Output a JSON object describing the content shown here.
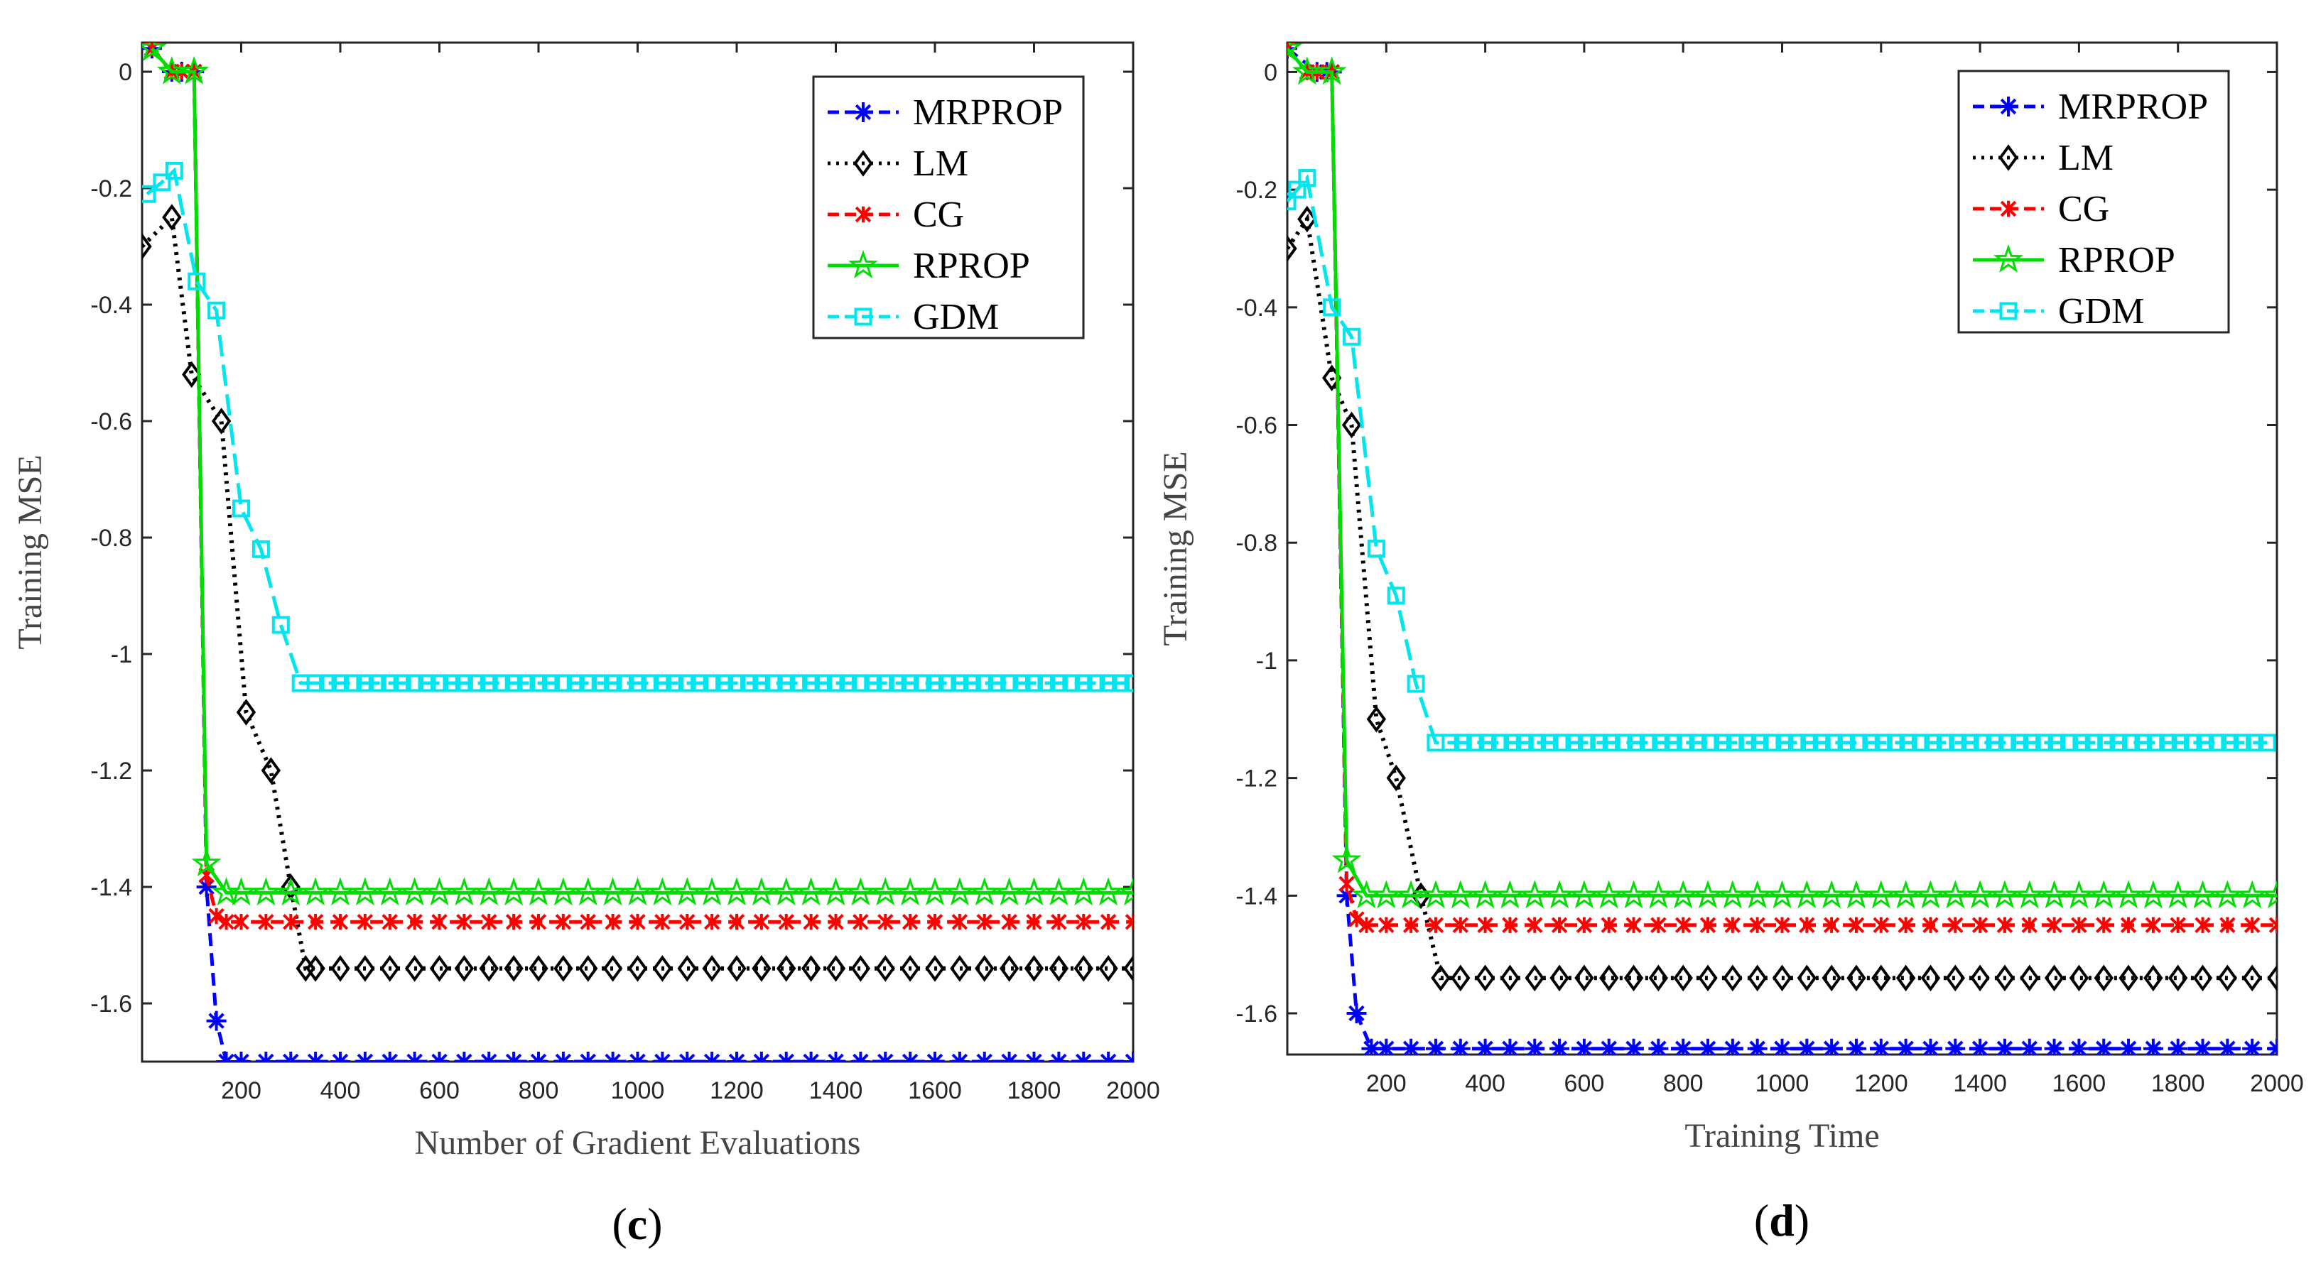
{
  "chart_data": [
    {
      "type": "line",
      "caption_open": "(",
      "caption_letter": "c",
      "caption_close": ")",
      "xlabel": "Number of Gradient Evaluations",
      "ylabel": "Training MSE",
      "xlim": [
        0,
        2000
      ],
      "ylim": [
        -1.7,
        0.05
      ],
      "xticks": [
        200,
        400,
        600,
        800,
        1000,
        1200,
        1400,
        1600,
        1800,
        2000
      ],
      "yticks": [
        0,
        -0.2,
        -0.4,
        -0.6,
        -0.8,
        -1,
        -1.2,
        -1.4,
        -1.6
      ],
      "ytick_labels": [
        "0",
        "-0.2",
        "-0.4",
        "-0.6",
        "-0.8",
        "-1",
        "-1.2",
        "-1.4",
        "-1.6"
      ],
      "legend_position": "top-right",
      "series": [
        {
          "name": "MRPROP",
          "color": "#0000ff",
          "dash": "18,10",
          "marker": "star",
          "points": [
            [
              20,
              0.04
            ],
            [
              60,
              0.0
            ],
            [
              80,
              0.0
            ],
            [
              105,
              0.0
            ],
            [
              130,
              -1.4
            ],
            [
              150,
              -1.63
            ],
            [
              170,
              -1.7
            ]
          ],
          "tail": {
            "start": 200,
            "end": 2000,
            "step": 50,
            "value": -1.7
          }
        },
        {
          "name": "LM",
          "color": "#000000",
          "dash": "4,8",
          "marker": "diamond",
          "points": [
            [
              0,
              -0.3
            ],
            [
              60,
              -0.25
            ],
            [
              100,
              -0.52
            ],
            [
              160,
              -0.6
            ],
            [
              210,
              -1.1
            ],
            [
              260,
              -1.2
            ],
            [
              300,
              -1.4
            ],
            [
              330,
              -1.54
            ]
          ],
          "tail": {
            "start": 350,
            "end": 2000,
            "step": 50,
            "value": -1.54
          }
        },
        {
          "name": "CG",
          "color": "#ff0000",
          "dash": "18,10",
          "marker": "cross",
          "points": [
            [
              20,
              0.04
            ],
            [
              60,
              0.0
            ],
            [
              80,
              0.0
            ],
            [
              105,
              0.0
            ],
            [
              130,
              -1.38
            ],
            [
              150,
              -1.45
            ],
            [
              170,
              -1.46
            ]
          ],
          "tail": {
            "start": 200,
            "end": 2000,
            "step": 50,
            "value": -1.46
          }
        },
        {
          "name": "RPROP",
          "color": "#00dd00",
          "dash": "none",
          "marker": "pentagram",
          "points": [
            [
              20,
              0.04
            ],
            [
              60,
              0.0
            ],
            [
              105,
              0.0
            ],
            [
              130,
              -1.36
            ],
            [
              170,
              -1.41
            ]
          ],
          "tail": {
            "start": 200,
            "end": 2000,
            "step": 50,
            "value": -1.41
          }
        },
        {
          "name": "GDM",
          "color": "#00e5ee",
          "dash": "30,12",
          "marker": "square",
          "points": [
            [
              10,
              -0.21
            ],
            [
              40,
              -0.19
            ],
            [
              65,
              -0.17
            ],
            [
              110,
              -0.36
            ],
            [
              150,
              -0.41
            ],
            [
              200,
              -0.75
            ],
            [
              240,
              -0.82
            ],
            [
              280,
              -0.95
            ],
            [
              320,
              -1.05
            ]
          ],
          "tail": {
            "start": 350,
            "end": 2000,
            "step": 25,
            "value": -1.05
          }
        }
      ]
    },
    {
      "type": "line",
      "caption_open": "(",
      "caption_letter": "d",
      "caption_close": ")",
      "xlabel": "Training Time",
      "ylabel": "Training MSE",
      "xlim": [
        0,
        2000
      ],
      "ylim": [
        -1.67,
        0.05
      ],
      "xticks": [
        200,
        400,
        600,
        800,
        1000,
        1200,
        1400,
        1600,
        1800,
        2000
      ],
      "yticks": [
        0,
        -0.2,
        -0.4,
        -0.6,
        -0.8,
        -1,
        -1.2,
        -1.4,
        -1.6
      ],
      "ytick_labels": [
        "0",
        "-0.2",
        "-0.4",
        "-0.6",
        "-0.8",
        "-1",
        "-1.2",
        "-1.4",
        "-1.6"
      ],
      "legend_position": "top-right",
      "series": [
        {
          "name": "MRPROP",
          "color": "#0000ff",
          "dash": "18,10",
          "marker": "star",
          "points": [
            [
              0,
              0.04
            ],
            [
              60,
              0.0
            ],
            [
              80,
              0.0
            ],
            [
              90,
              0.0
            ],
            [
              120,
              -1.4
            ],
            [
              140,
              -1.6
            ],
            [
              170,
              -1.66
            ]
          ],
          "tail": {
            "start": 200,
            "end": 2000,
            "step": 50,
            "value": -1.66
          }
        },
        {
          "name": "LM",
          "color": "#000000",
          "dash": "4,8",
          "marker": "diamond",
          "points": [
            [
              0,
              -0.3
            ],
            [
              40,
              -0.25
            ],
            [
              90,
              -0.52
            ],
            [
              130,
              -0.6
            ],
            [
              180,
              -1.1
            ],
            [
              220,
              -1.2
            ],
            [
              270,
              -1.4
            ],
            [
              310,
              -1.54
            ]
          ],
          "tail": {
            "start": 350,
            "end": 2000,
            "step": 50,
            "value": -1.54
          }
        },
        {
          "name": "CG",
          "color": "#ff0000",
          "dash": "18,10",
          "marker": "cross",
          "points": [
            [
              0,
              0.04
            ],
            [
              40,
              0.0
            ],
            [
              60,
              0.0
            ],
            [
              90,
              0.0
            ],
            [
              120,
              -1.38
            ],
            [
              140,
              -1.44
            ],
            [
              160,
              -1.45
            ]
          ],
          "tail": {
            "start": 200,
            "end": 2000,
            "step": 50,
            "value": -1.45
          }
        },
        {
          "name": "RPROP",
          "color": "#00dd00",
          "dash": "none",
          "marker": "pentagram",
          "points": [
            [
              0,
              0.04
            ],
            [
              40,
              0.0
            ],
            [
              90,
              0.0
            ],
            [
              120,
              -1.34
            ],
            [
              160,
              -1.4
            ]
          ],
          "tail": {
            "start": 200,
            "end": 2000,
            "step": 50,
            "value": -1.4
          }
        },
        {
          "name": "GDM",
          "color": "#00e5ee",
          "dash": "30,12",
          "marker": "square",
          "points": [
            [
              0,
              -0.22
            ],
            [
              20,
              -0.2
            ],
            [
              40,
              -0.18
            ],
            [
              90,
              -0.4
            ],
            [
              130,
              -0.45
            ],
            [
              180,
              -0.81
            ],
            [
              220,
              -0.89
            ],
            [
              260,
              -1.04
            ],
            [
              300,
              -1.14
            ]
          ],
          "tail": {
            "start": 330,
            "end": 2000,
            "step": 25,
            "value": -1.14
          }
        }
      ]
    }
  ]
}
